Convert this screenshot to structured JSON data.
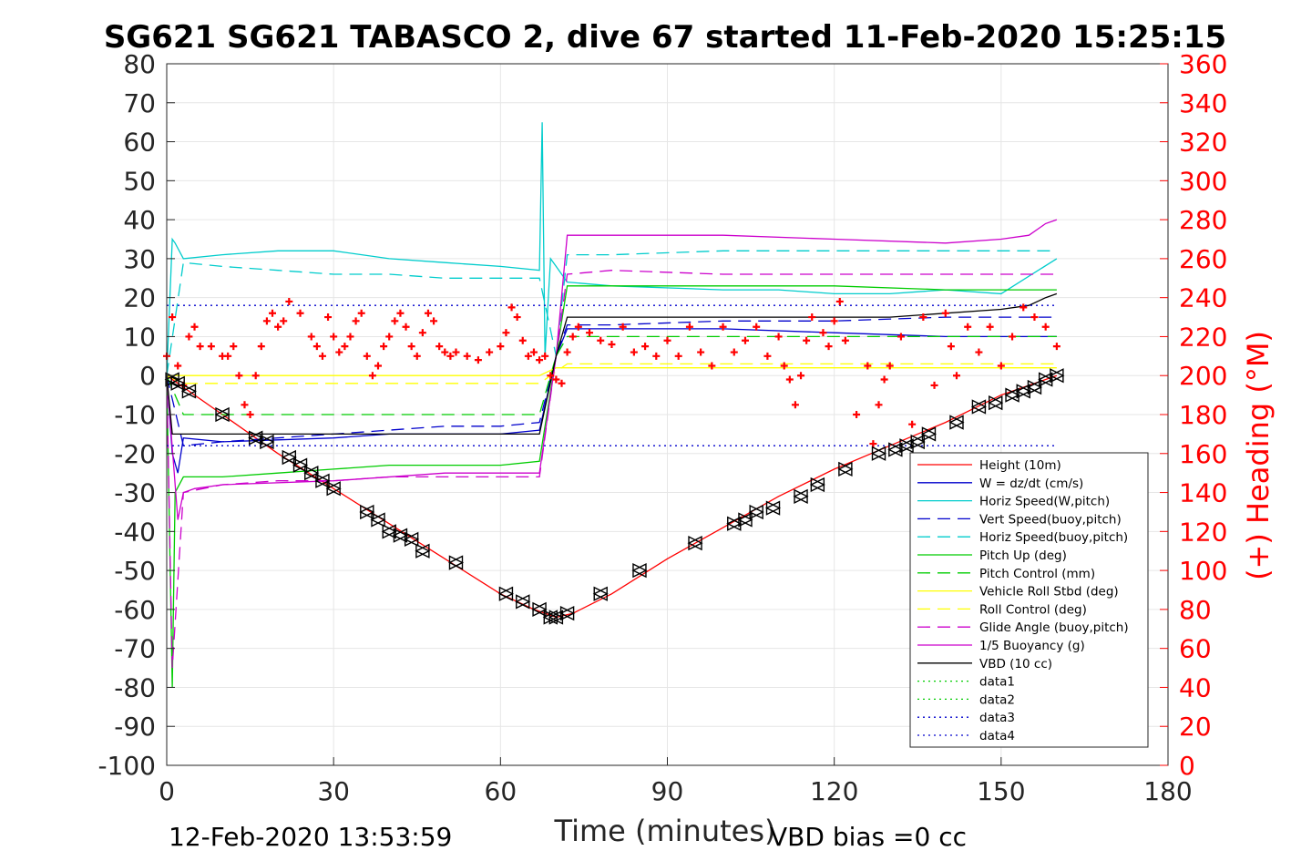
{
  "chart_data": {
    "type": "line",
    "title": "SG621 SG621 TABASCO 2, dive 67 started 11-Feb-2020 15:25:15",
    "xlabel": "Time (minutes)",
    "ylabel_right": "(+) Heading (°M)",
    "xlim": [
      0,
      180
    ],
    "ylim_left": [
      -100,
      80
    ],
    "ylim_right": [
      0,
      360
    ],
    "x_ticks": [
      "0",
      "30",
      "60",
      "90",
      "120",
      "150",
      "180"
    ],
    "y_ticks_left": [
      "80",
      "70",
      "60",
      "50",
      "40",
      "30",
      "20",
      "10",
      "0",
      "-10",
      "-20",
      "-30",
      "-40",
      "-50",
      "-60",
      "-70",
      "-80",
      "-90",
      "-100"
    ],
    "y_ticks_right": [
      "360",
      "340",
      "320",
      "300",
      "280",
      "260",
      "240",
      "220",
      "200",
      "180",
      "160",
      "140",
      "120",
      "100",
      "80",
      "60",
      "40",
      "20",
      "0"
    ],
    "grid": true,
    "legend_position": "bottom-right inside",
    "footer_left": "12-Feb-2020 13:53:59",
    "footer_right": "VBD bias =0 cc",
    "series": [
      {
        "name": "Height (10m)",
        "color": "#ff0000",
        "style": "solid",
        "x": [
          0,
          10,
          20,
          30,
          40,
          50,
          60,
          66,
          70,
          73,
          80,
          90,
          100,
          110,
          120,
          130,
          140,
          150,
          158,
          160
        ],
        "y": [
          0,
          -10,
          -20,
          -29,
          -38,
          -47,
          -56,
          -60,
          -62,
          -61,
          -56,
          -47,
          -39,
          -31,
          -24,
          -18,
          -12,
          -5,
          -1,
          0
        ]
      },
      {
        "name": "W = dz/dt (cm/s)",
        "color": "#0000cc",
        "style": "solid",
        "x": [
          0,
          1,
          2,
          3,
          10,
          30,
          40,
          50,
          60,
          67,
          70,
          72,
          80,
          100,
          120,
          140,
          160
        ],
        "y": [
          0,
          -20,
          -25,
          -16,
          -17,
          -16,
          -15,
          -15,
          -15,
          -14,
          5,
          12,
          12,
          12,
          11,
          10,
          10
        ]
      },
      {
        "name": "Horiz Speed(W,pitch)",
        "color": "#00cccc",
        "style": "solid",
        "x": [
          0,
          1,
          1.5,
          3,
          10,
          20,
          30,
          40,
          50,
          60,
          67,
          67.5,
          68,
          69,
          70,
          72,
          80,
          100,
          110,
          120,
          130,
          140,
          150,
          160
        ],
        "y": [
          0,
          35,
          34,
          30,
          31,
          32,
          32,
          30,
          29,
          28,
          27,
          65,
          5,
          30,
          28,
          24,
          23,
          22,
          22,
          21,
          21,
          22,
          21,
          30
        ]
      },
      {
        "name": "Vert Speed(buoy,pitch)",
        "color": "#0000cc",
        "style": "dashed",
        "x": [
          0,
          3,
          10,
          30,
          40,
          50,
          60,
          67,
          70,
          72,
          80,
          100,
          120,
          140,
          160
        ],
        "y": [
          0,
          -18,
          -17,
          -15,
          -14,
          -13,
          -13,
          -12,
          5,
          13,
          13,
          14,
          14,
          15,
          15
        ]
      },
      {
        "name": "Horiz Speed(buoy,pitch)",
        "color": "#00cccc",
        "style": "dashed",
        "x": [
          0,
          3,
          10,
          20,
          30,
          40,
          50,
          60,
          67,
          70,
          72,
          80,
          100,
          120,
          140,
          160
        ],
        "y": [
          0,
          29,
          28,
          27,
          26,
          26,
          25,
          25,
          25,
          5,
          31,
          31,
          32,
          32,
          32,
          32
        ]
      },
      {
        "name": "Pitch Up (deg)",
        "color": "#00cc00",
        "style": "solid",
        "x": [
          0,
          1,
          1.5,
          3,
          10,
          20,
          30,
          40,
          50,
          60,
          67,
          70,
          72,
          80,
          100,
          120,
          140,
          160
        ],
        "y": [
          0,
          -80,
          -30,
          -26,
          -26,
          -25,
          -24,
          -23,
          -23,
          -23,
          -22,
          5,
          23,
          23,
          23,
          23,
          22,
          22
        ]
      },
      {
        "name": "Pitch Control (mm)",
        "color": "#00cc00",
        "style": "dashed",
        "x": [
          0,
          3,
          20,
          40,
          60,
          67,
          70,
          72,
          80,
          100,
          120,
          140,
          160
        ],
        "y": [
          0,
          -10,
          -10,
          -10,
          -10,
          -10,
          5,
          10,
          10,
          10,
          10,
          10,
          10
        ]
      },
      {
        "name": "Vehicle Roll Stbd (deg)",
        "color": "#ffff00",
        "style": "solid",
        "x": [
          0,
          3,
          10,
          20,
          30,
          40,
          50,
          60,
          67,
          70,
          72,
          80,
          90,
          100,
          110,
          120,
          130,
          140,
          150,
          160
        ],
        "y": [
          0,
          0,
          0,
          0,
          0,
          0,
          0,
          0,
          0,
          2,
          2,
          2,
          2,
          2,
          2,
          2,
          2,
          2,
          2,
          2
        ]
      },
      {
        "name": "Roll Control (deg)",
        "color": "#ffff00",
        "style": "dashed",
        "x": [
          0,
          3,
          20,
          40,
          60,
          67,
          72,
          100,
          130,
          160
        ],
        "y": [
          0,
          -2,
          -2,
          -2,
          -2,
          -2,
          3,
          3,
          3,
          3
        ]
      },
      {
        "name": "Glide Angle (buoy,pitch)",
        "color": "#cc00cc",
        "style": "dashed",
        "x": [
          0,
          1,
          3,
          10,
          20,
          30,
          40,
          50,
          60,
          67,
          70,
          72,
          80,
          100,
          120,
          140,
          160
        ],
        "y": [
          0,
          -75,
          -30,
          -28,
          -27,
          -27,
          -26,
          -26,
          -26,
          -26,
          5,
          26,
          27,
          26,
          26,
          26,
          26
        ]
      },
      {
        "name": "1/5 Buoyancy (g)",
        "color": "#cc00cc",
        "style": "solid",
        "x": [
          0,
          2,
          3,
          5,
          10,
          30,
          50,
          67,
          70,
          72,
          100,
          120,
          140,
          150,
          155,
          158,
          160
        ],
        "y": [
          0,
          -37,
          -30,
          -29,
          -28,
          -27,
          -25,
          -25,
          5,
          36,
          36,
          35,
          34,
          35,
          36,
          39,
          40
        ]
      },
      {
        "name": "VBD (10 cc)",
        "color": "#000000",
        "style": "solid",
        "x": [
          0,
          1,
          1.5,
          30,
          60,
          67,
          70,
          72,
          100,
          130,
          150,
          155,
          158,
          160
        ],
        "y": [
          0,
          -15,
          -15,
          -15,
          -15,
          -15,
          5,
          15,
          15,
          15,
          17,
          18,
          20,
          21
        ]
      },
      {
        "name": "data1",
        "color": "#00cc00",
        "style": "dotted",
        "x": [],
        "y": []
      },
      {
        "name": "data2",
        "color": "#00cc00",
        "style": "dotted",
        "x": [],
        "y": []
      },
      {
        "name": "data3",
        "color": "#0000cc",
        "style": "dotted",
        "x": [
          0,
          160
        ],
        "y": [
          18,
          18
        ]
      },
      {
        "name": "data4",
        "color": "#0000cc",
        "style": "dotted",
        "x": [
          0,
          160
        ],
        "y": [
          -18,
          -18
        ]
      }
    ],
    "markers": {
      "color": "#000000",
      "shape": "triangle",
      "x": [
        1,
        2,
        4,
        10,
        16,
        18,
        22,
        24,
        26,
        28,
        30,
        36,
        38,
        40,
        42,
        44,
        46,
        52,
        61,
        64,
        67,
        69,
        70,
        72,
        78,
        85,
        95,
        102,
        104,
        106,
        109,
        114,
        117,
        122,
        128,
        131,
        133,
        135,
        137,
        142,
        146,
        149,
        152,
        154,
        156,
        158,
        160
      ],
      "y": [
        -1,
        -2,
        -4,
        -10,
        -16,
        -17,
        -21,
        -23,
        -25,
        -27,
        -29,
        -35,
        -37,
        -40,
        -41,
        -42,
        -45,
        -48,
        -56,
        -58,
        -60,
        -62,
        -62,
        -61,
        -56,
        -50,
        -43,
        -38,
        -37,
        -35,
        -34,
        -31,
        -28,
        -24,
        -20,
        -19,
        -18,
        -17,
        -15,
        -12,
        -8,
        -7,
        -5,
        -4,
        -3,
        -1,
        0
      ]
    },
    "heading": {
      "name": "(+) Heading (°M)",
      "color": "#ff0000",
      "axis": "right",
      "x": [
        0,
        1,
        2,
        3,
        4,
        5,
        6,
        8,
        10,
        11,
        12,
        13,
        14,
        15,
        16,
        17,
        18,
        19,
        20,
        21,
        22,
        24,
        26,
        27,
        28,
        29,
        30,
        31,
        32,
        33,
        34,
        35,
        36,
        37,
        38,
        39,
        40,
        41,
        42,
        43,
        44,
        45,
        46,
        47,
        48,
        49,
        50,
        51,
        52,
        54,
        56,
        58,
        60,
        61,
        62,
        63,
        64,
        65,
        66,
        67,
        68,
        69,
        70,
        71,
        72,
        73,
        74,
        76,
        78,
        80,
        82,
        84,
        86,
        88,
        90,
        92,
        94,
        96,
        98,
        100,
        102,
        104,
        106,
        108,
        110,
        111,
        112,
        113,
        114,
        115,
        116,
        118,
        119,
        120,
        121,
        122,
        124,
        126,
        127,
        128,
        129,
        130,
        132,
        134,
        136,
        138,
        140,
        141,
        142,
        144,
        146,
        148,
        150,
        152,
        154,
        156,
        158,
        160
      ],
      "y": [
        210,
        230,
        205,
        195,
        220,
        225,
        215,
        215,
        210,
        210,
        215,
        200,
        185,
        180,
        200,
        215,
        228,
        232,
        225,
        228,
        238,
        232,
        220,
        215,
        210,
        230,
        220,
        212,
        215,
        220,
        228,
        232,
        210,
        200,
        205,
        215,
        220,
        228,
        232,
        225,
        215,
        210,
        222,
        232,
        228,
        215,
        212,
        210,
        212,
        210,
        208,
        212,
        215,
        222,
        235,
        230,
        218,
        210,
        212,
        208,
        210,
        200,
        198,
        196,
        212,
        220,
        225,
        222,
        218,
        216,
        225,
        212,
        215,
        210,
        218,
        210,
        225,
        212,
        205,
        225,
        212,
        218,
        225,
        210,
        220,
        205,
        198,
        185,
        200,
        218,
        230,
        222,
        215,
        228,
        238,
        218,
        180,
        205,
        165,
        185,
        198,
        205,
        220,
        175,
        230,
        195,
        232,
        215,
        200,
        225,
        212,
        225,
        205,
        220,
        235,
        230,
        225,
        215
      ]
    }
  }
}
